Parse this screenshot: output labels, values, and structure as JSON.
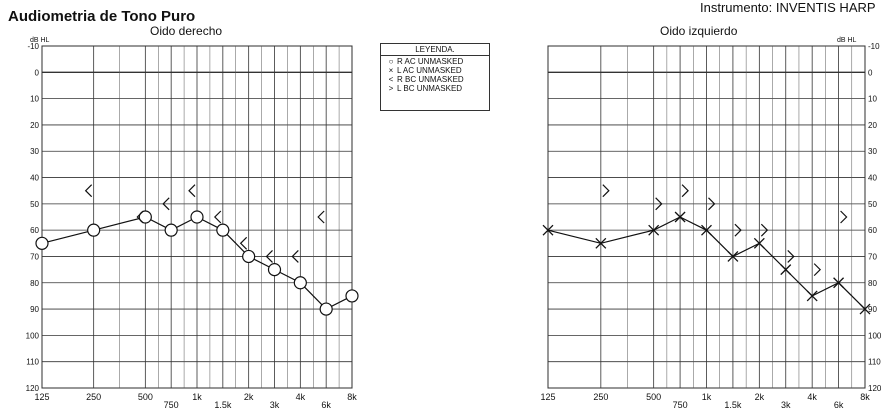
{
  "page": {
    "title": "Audiometria de Tono Puro",
    "instrument": "Instrumento: INVENTIS HARP"
  },
  "legend": {
    "title": "LEYENDA.",
    "items": [
      {
        "symbol": "○",
        "label": "R AC UNMASKED"
      },
      {
        "symbol": "×",
        "label": "L AC UNMASKED"
      },
      {
        "symbol": "<",
        "label": "R BC UNMASKED"
      },
      {
        "symbol": ">",
        "label": "L BC UNMASKED"
      }
    ]
  },
  "chart_data": [
    {
      "type": "line",
      "title": "Oido derecho",
      "ylabel": "dB HL",
      "ylim": [
        -10,
        120
      ],
      "yticks": [
        -10,
        0,
        10,
        20,
        30,
        40,
        50,
        60,
        70,
        80,
        90,
        100,
        110,
        120
      ],
      "x_tick_labels": [
        "125",
        "250",
        "500",
        "750",
        "1k",
        "1.5k",
        "2k",
        "3k",
        "4k",
        "6k",
        "8k"
      ],
      "x_frequencies_hz": [
        125,
        250,
        500,
        750,
        1000,
        1500,
        2000,
        3000,
        4000,
        6000,
        8000
      ],
      "y_axis_side": "left",
      "grid": true,
      "series": [
        {
          "name": "R AC UNMASKED",
          "marker": "circle",
          "connected": true,
          "x": [
            125,
            250,
            500,
            750,
            1000,
            1500,
            2000,
            3000,
            4000,
            6000,
            8000
          ],
          "y": [
            65,
            60,
            55,
            60,
            55,
            60,
            70,
            75,
            80,
            90,
            85
          ]
        },
        {
          "name": "R BC UNMASKED",
          "marker": "<",
          "connected": false,
          "x": [
            250,
            500,
            750,
            1000,
            1500,
            2000,
            3000,
            4000,
            6000
          ],
          "y": [
            45,
            55,
            50,
            45,
            55,
            65,
            70,
            70,
            55
          ]
        }
      ]
    },
    {
      "type": "line",
      "title": "Oido izquierdo",
      "ylabel": "dB HL",
      "ylim": [
        -10,
        120
      ],
      "yticks": [
        -10,
        0,
        10,
        20,
        30,
        40,
        50,
        60,
        70,
        80,
        90,
        100,
        110,
        120
      ],
      "x_tick_labels": [
        "125",
        "250",
        "500",
        "750",
        "1k",
        "1.5k",
        "2k",
        "3k",
        "4k",
        "6k",
        "8k"
      ],
      "x_frequencies_hz": [
        125,
        250,
        500,
        750,
        1000,
        1500,
        2000,
        3000,
        4000,
        6000,
        8000
      ],
      "y_axis_side": "right",
      "grid": true,
      "series": [
        {
          "name": "L AC UNMASKED",
          "marker": "x",
          "connected": true,
          "x": [
            125,
            250,
            500,
            750,
            1000,
            1500,
            2000,
            3000,
            4000,
            6000,
            8000
          ],
          "y": [
            60,
            65,
            60,
            55,
            60,
            70,
            65,
            75,
            85,
            80,
            90
          ]
        },
        {
          "name": "L BC UNMASKED",
          "marker": ">",
          "connected": false,
          "x": [
            250,
            500,
            750,
            1000,
            1500,
            2000,
            3000,
            4000,
            6000
          ],
          "y": [
            45,
            50,
            45,
            50,
            60,
            60,
            70,
            75,
            55
          ]
        }
      ]
    }
  ]
}
